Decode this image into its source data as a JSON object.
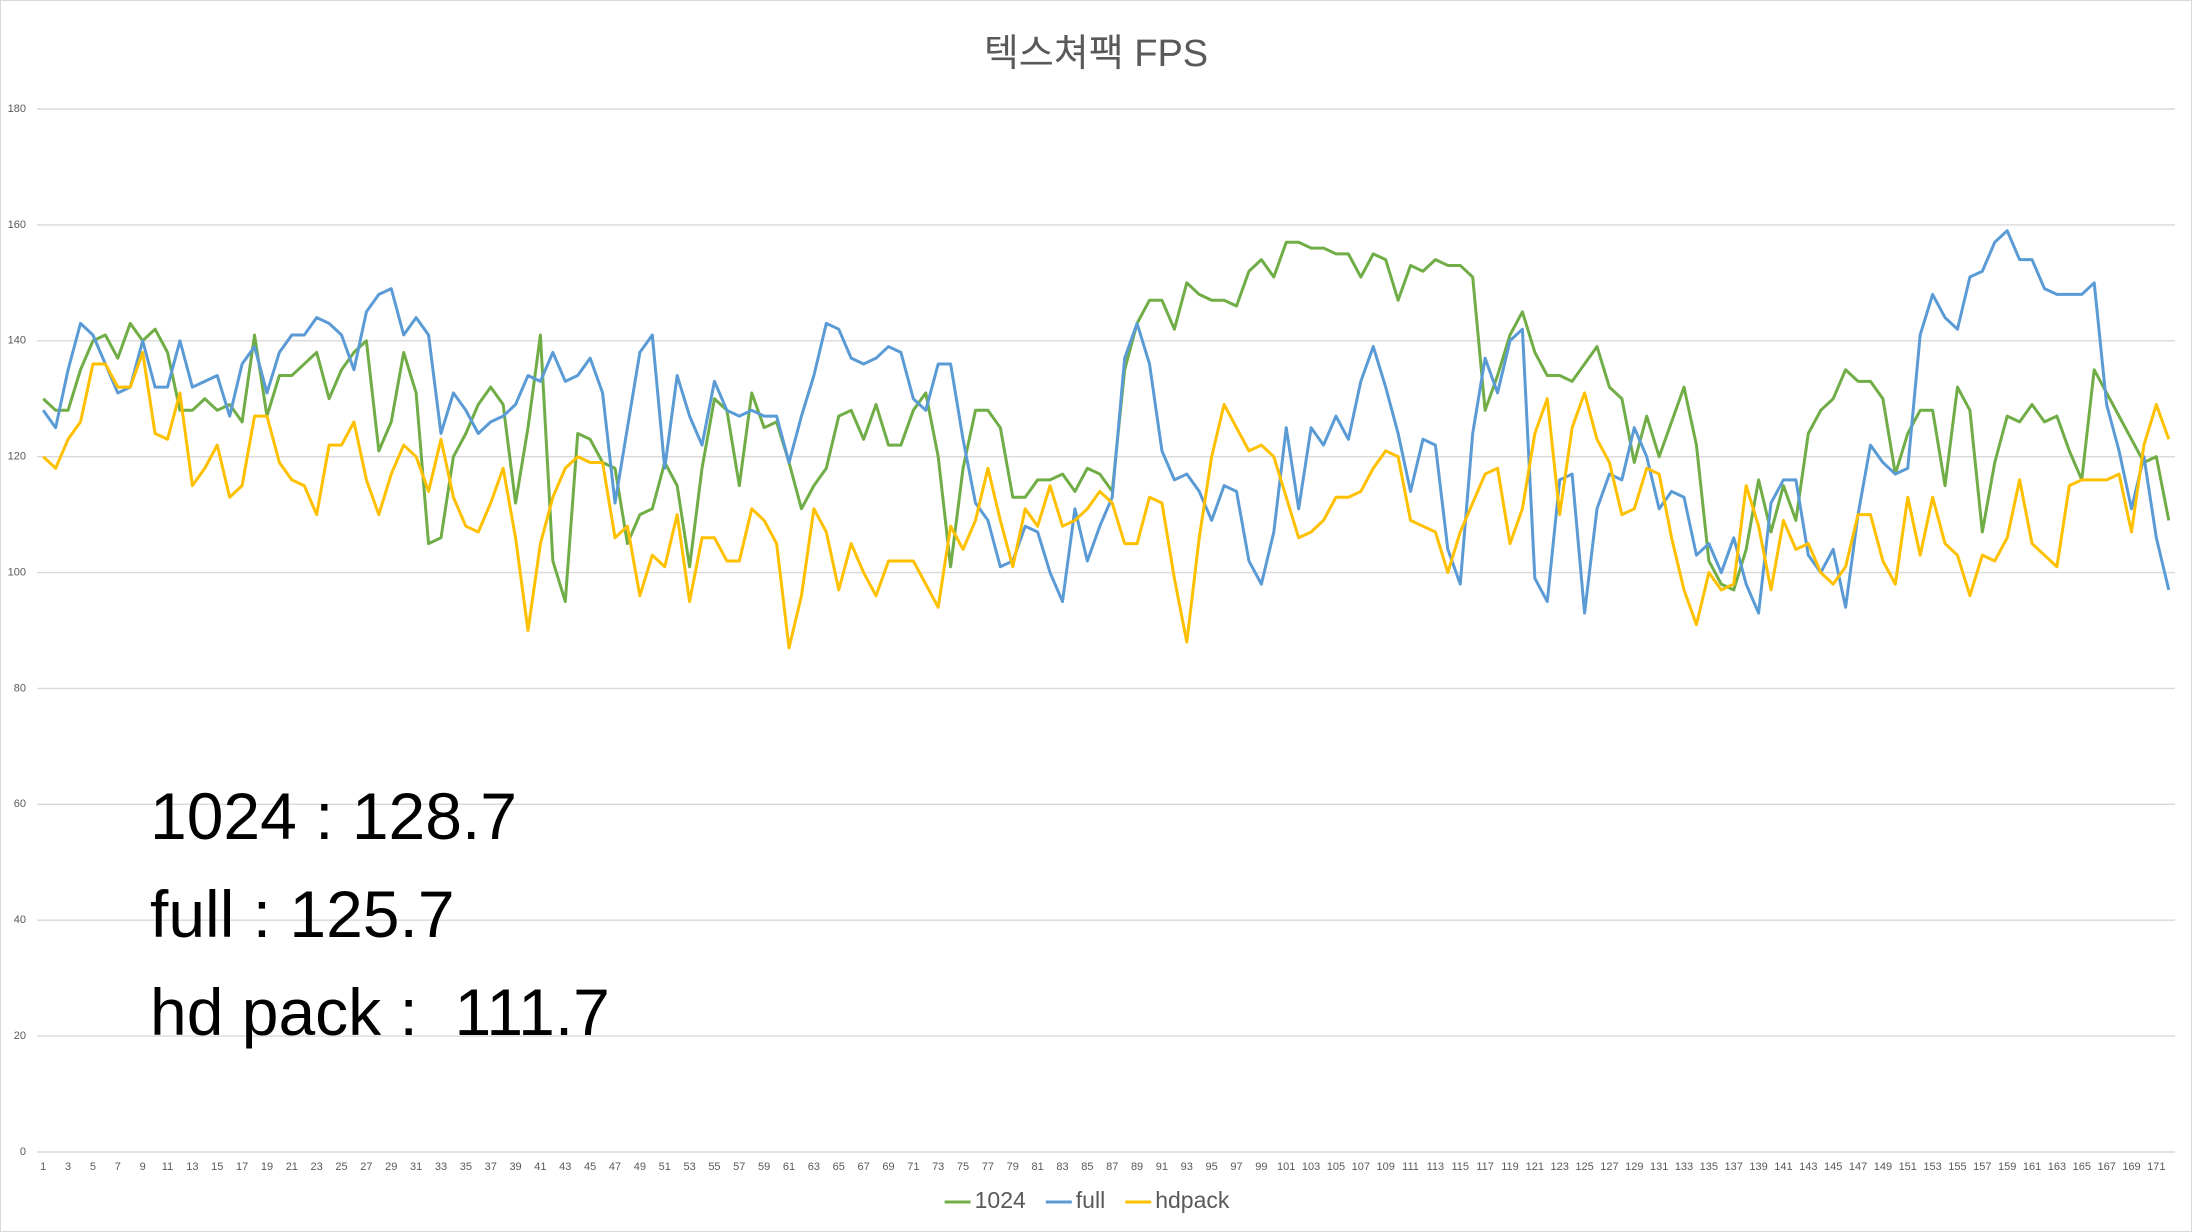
{
  "chart_data": {
    "type": "line",
    "title": "텍스쳐팩 FPS",
    "categories": [
      1,
      null,
      3,
      null,
      5,
      null,
      7,
      null,
      9,
      null,
      11,
      null,
      13,
      null,
      15,
      null,
      17,
      null,
      19,
      null,
      21,
      null,
      23,
      null,
      25,
      null,
      27,
      null,
      29,
      null,
      31,
      null,
      33,
      null,
      35,
      null,
      37,
      null,
      39,
      null,
      41,
      null,
      43,
      null,
      45,
      null,
      47,
      null,
      49,
      null,
      51,
      null,
      53,
      null,
      55,
      null,
      57,
      null,
      59,
      null,
      61,
      null,
      63,
      null,
      65,
      null,
      67,
      null,
      69,
      null,
      71,
      null,
      73,
      null,
      75,
      null,
      77,
      null,
      79,
      null,
      81,
      null,
      83,
      null,
      85,
      null,
      87,
      null,
      89,
      null,
      91,
      null,
      93,
      null,
      95,
      null,
      97,
      null,
      99,
      null,
      101,
      null,
      103,
      null,
      105,
      null,
      107,
      null,
      109,
      null,
      111,
      null,
      113,
      null,
      115,
      null,
      117,
      null,
      119,
      null,
      121,
      null,
      123,
      null,
      125,
      null,
      127,
      null,
      129,
      null,
      131,
      null,
      133,
      null,
      135,
      null,
      137,
      null,
      139,
      null,
      141,
      null,
      143,
      null,
      145,
      null,
      147,
      null,
      149,
      null,
      151,
      null,
      153,
      null,
      155,
      null,
      157,
      null,
      159,
      null,
      161,
      null,
      163,
      null,
      165,
      null,
      167,
      null,
      169,
      null,
      171,
      null
    ],
    "series": [
      {
        "name": "1024",
        "color": "#70ad47",
        "values": [
          130,
          128,
          128,
          135,
          140,
          141,
          137,
          143,
          140,
          142,
          138,
          128,
          128,
          130,
          128,
          129,
          126,
          141,
          127,
          134,
          134,
          136,
          138,
          130,
          135,
          138,
          140,
          121,
          126,
          138,
          131,
          105,
          106,
          120,
          124,
          129,
          132,
          129,
          112,
          125,
          141,
          102,
          95,
          124,
          123,
          119,
          118,
          105,
          110,
          111,
          119,
          115,
          101,
          118,
          130,
          128,
          115,
          131,
          125,
          126,
          119,
          111,
          115,
          118,
          127,
          128,
          123,
          129,
          122,
          122,
          128,
          131,
          120,
          101,
          118,
          128,
          128,
          125,
          113,
          113,
          116,
          116,
          117,
          114,
          118,
          117,
          114,
          135,
          143,
          147,
          147,
          142,
          150,
          148,
          147,
          147,
          146,
          152,
          154,
          151,
          157,
          157,
          156,
          156,
          155,
          155,
          151,
          155,
          154,
          147,
          153,
          152,
          154,
          153,
          153,
          151,
          128,
          134,
          141,
          145,
          138,
          134,
          134,
          133,
          136,
          139,
          132,
          130,
          119,
          127,
          120,
          126,
          132,
          122,
          102,
          98,
          97,
          104,
          116,
          107,
          115,
          109,
          124,
          128,
          130,
          135,
          133,
          133,
          130,
          117,
          124,
          128,
          128,
          115,
          132,
          128,
          107,
          119,
          127,
          126,
          129,
          126,
          127,
          121,
          116,
          135,
          131,
          127,
          123,
          119,
          120,
          109
        ]
      },
      {
        "name": "full",
        "color": "#5b9bd5",
        "values": [
          128,
          125,
          135,
          143,
          141,
          136,
          131,
          132,
          140,
          132,
          132,
          140,
          132,
          133,
          134,
          127,
          136,
          139,
          131,
          138,
          141,
          141,
          144,
          143,
          141,
          135,
          145,
          148,
          149,
          141,
          144,
          141,
          124,
          131,
          128,
          124,
          126,
          127,
          129,
          134,
          133,
          138,
          133,
          134,
          137,
          131,
          112,
          125,
          138,
          141,
          118,
          134,
          127,
          122,
          133,
          128,
          127,
          128,
          127,
          127,
          119,
          127,
          134,
          143,
          142,
          137,
          136,
          137,
          139,
          138,
          130,
          128,
          136,
          136,
          123,
          112,
          109,
          101,
          102,
          108,
          107,
          100,
          95,
          111,
          102,
          108,
          113,
          137,
          143,
          136,
          121,
          116,
          117,
          114,
          109,
          115,
          114,
          102,
          98,
          107,
          125,
          111,
          125,
          122,
          127,
          123,
          133,
          139,
          132,
          124,
          114,
          123,
          122,
          104,
          98,
          124,
          137,
          131,
          140,
          142,
          99,
          95,
          116,
          117,
          93,
          111,
          117,
          116,
          125,
          120,
          111,
          114,
          113,
          103,
          105,
          100,
          106,
          98,
          93,
          112,
          116,
          116,
          103,
          100,
          104,
          94,
          110,
          122,
          119,
          117,
          118,
          141,
          148,
          144,
          142,
          151,
          152,
          157,
          159,
          154,
          154,
          149,
          148,
          148,
          148,
          150,
          129,
          121,
          111,
          120,
          106,
          97
        ]
      },
      {
        "name": "hdpack",
        "color": "#ffc000",
        "values": [
          120,
          118,
          123,
          126,
          136,
          136,
          132,
          132,
          138,
          124,
          123,
          131,
          115,
          118,
          122,
          113,
          115,
          127,
          127,
          119,
          116,
          115,
          110,
          122,
          122,
          126,
          116,
          110,
          117,
          122,
          120,
          114,
          123,
          113,
          108,
          107,
          112,
          118,
          106,
          90,
          105,
          113,
          118,
          120,
          119,
          119,
          106,
          108,
          96,
          103,
          101,
          110,
          95,
          106,
          106,
          102,
          102,
          111,
          109,
          105,
          87,
          96,
          111,
          107,
          97,
          105,
          100,
          96,
          102,
          102,
          102,
          98,
          94,
          108,
          104,
          109,
          118,
          109,
          101,
          111,
          108,
          115,
          108,
          109,
          111,
          114,
          112,
          105,
          105,
          113,
          112,
          99,
          88,
          106,
          120,
          129,
          125,
          121,
          122,
          120,
          113,
          106,
          107,
          109,
          113,
          113,
          114,
          118,
          121,
          120,
          109,
          108,
          107,
          100,
          107,
          112,
          117,
          118,
          105,
          111,
          124,
          130,
          110,
          125,
          131,
          123,
          119,
          110,
          111,
          118,
          117,
          106,
          97,
          91,
          100,
          97,
          98,
          115,
          108,
          97,
          109,
          104,
          105,
          100,
          98,
          101,
          110,
          110,
          102,
          98,
          113,
          103,
          113,
          105,
          103,
          96,
          103,
          102,
          106,
          116,
          105,
          103,
          101,
          115,
          116,
          116,
          116,
          117,
          107,
          122,
          129,
          123
        ]
      }
    ],
    "ylim": [
      0,
      180
    ],
    "yticks": [
      0,
      20,
      40,
      60,
      80,
      100,
      120,
      140,
      160,
      180
    ],
    "grid": true,
    "legend": "bottom",
    "annotations": [
      "1024 : 128.7",
      "full : 125.7",
      "hd pack :  111.7"
    ]
  }
}
